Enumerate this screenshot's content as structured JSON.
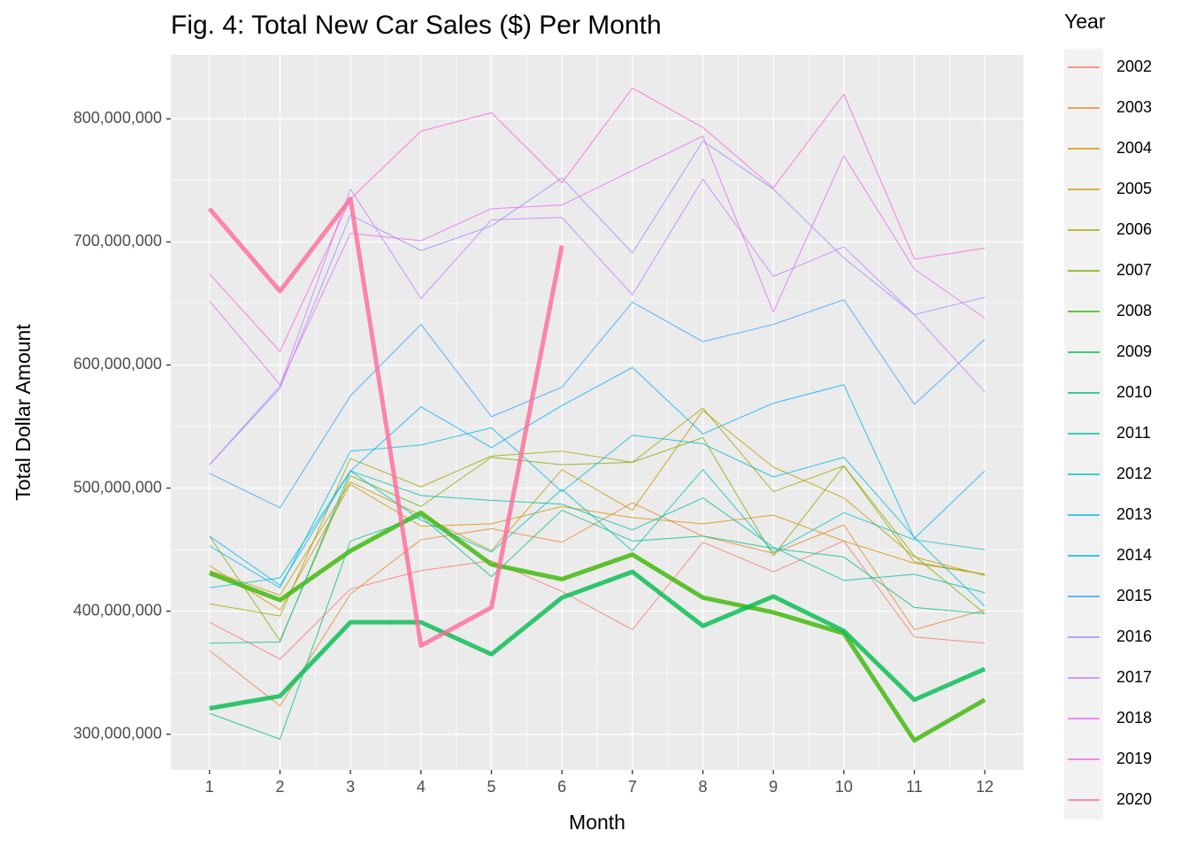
{
  "chart_data": {
    "type": "line",
    "title": "Fig. 4: Total New Car Sales ($) Per Month",
    "x_label": "Month",
    "y_label": "Total Dollar Amount",
    "legend_title": "Year",
    "x": [
      1,
      2,
      3,
      4,
      5,
      6,
      7,
      8,
      9,
      10,
      11,
      12
    ],
    "xlim": [
      0.45,
      12.55
    ],
    "xticks": [
      1,
      2,
      3,
      4,
      5,
      6,
      7,
      8,
      9,
      10,
      11,
      12
    ],
    "ylim": [
      271000000,
      852000000
    ],
    "yticks": [
      {
        "value": 300000000,
        "label": "300,000,000"
      },
      {
        "value": 400000000,
        "label": "400,000,000"
      },
      {
        "value": 500000000,
        "label": "500,000,000"
      },
      {
        "value": 600000000,
        "label": "600,000,000"
      },
      {
        "value": 700000000,
        "label": "700,000,000"
      },
      {
        "value": 800000000,
        "label": "800,000,000"
      }
    ],
    "grid": true,
    "legend": "right",
    "series": [
      {
        "name": "2002",
        "color": "#F8766D",
        "linewidth": 1,
        "values": [
          391000000,
          361000000,
          418000000,
          433000000,
          441000000,
          416000000,
          385000000,
          456000000,
          432000000,
          457000000,
          379000000,
          374000000
        ]
      },
      {
        "name": "2003",
        "color": "#EA8331",
        "linewidth": 1,
        "values": [
          368000000,
          323000000,
          414000000,
          458000000,
          467000000,
          456000000,
          488000000,
          461000000,
          447000000,
          470000000,
          385000000,
          401000000
        ]
      },
      {
        "name": "2004",
        "color": "#D89000",
        "linewidth": 1,
        "values": [
          437000000,
          401000000,
          503000000,
          469000000,
          471000000,
          485000000,
          476000000,
          471000000,
          478000000,
          457000000,
          439000000,
          430000000
        ]
      },
      {
        "name": "2005",
        "color": "#C09B00",
        "linewidth": 1,
        "values": [
          433000000,
          413000000,
          505000000,
          478000000,
          449000000,
          515000000,
          482000000,
          563000000,
          517000000,
          492000000,
          444000000,
          429000000
        ]
      },
      {
        "name": "2006",
        "color": "#A3A500",
        "linewidth": 1,
        "values": [
          406000000,
          396000000,
          524000000,
          501000000,
          526000000,
          530000000,
          521000000,
          565000000,
          497000000,
          518000000,
          440000000,
          430000000
        ]
      },
      {
        "name": "2007",
        "color": "#7CAE00",
        "linewidth": 1,
        "values": [
          461000000,
          376000000,
          510000000,
          485000000,
          525000000,
          519000000,
          521000000,
          541000000,
          445000000,
          518000000,
          445000000,
          398000000
        ]
      },
      {
        "name": "2008",
        "color": "#39B600",
        "linewidth": 5,
        "values": [
          431000000,
          409000000,
          449000000,
          480000000,
          438000000,
          426000000,
          446000000,
          411000000,
          399000000,
          382000000,
          295000000,
          328000000
        ]
      },
      {
        "name": "2009",
        "color": "#00BB4E",
        "linewidth": 5,
        "values": [
          321000000,
          331000000,
          391000000,
          391000000,
          365000000,
          411000000,
          432000000,
          388000000,
          412000000,
          384000000,
          328000000,
          353000000
        ]
      },
      {
        "name": "2010",
        "color": "#00BF7D",
        "linewidth": 1,
        "values": [
          317000000,
          296000000,
          457000000,
          477000000,
          428000000,
          482000000,
          457000000,
          461000000,
          451000000,
          444000000,
          403000000,
          398000000
        ]
      },
      {
        "name": "2011",
        "color": "#00C1A3",
        "linewidth": 1,
        "values": [
          374000000,
          375000000,
          514000000,
          494000000,
          490000000,
          487000000,
          466000000,
          492000000,
          452000000,
          425000000,
          430000000,
          415000000
        ]
      },
      {
        "name": "2012",
        "color": "#00BFC4",
        "linewidth": 1,
        "values": [
          419000000,
          427000000,
          514000000,
          474000000,
          448000000,
          499000000,
          449000000,
          515000000,
          448000000,
          480000000,
          458000000,
          450000000
        ]
      },
      {
        "name": "2013",
        "color": "#00BAE0",
        "linewidth": 1,
        "values": [
          453000000,
          419000000,
          530000000,
          535000000,
          549000000,
          497000000,
          543000000,
          536000000,
          509000000,
          525000000,
          460000000,
          404000000
        ]
      },
      {
        "name": "2014",
        "color": "#00B0F6",
        "linewidth": 1,
        "values": [
          461000000,
          421000000,
          514000000,
          566000000,
          533000000,
          567000000,
          598000000,
          544000000,
          569000000,
          584000000,
          459000000,
          514000000
        ]
      },
      {
        "name": "2015",
        "color": "#35A2FF",
        "linewidth": 1,
        "values": [
          512000000,
          484000000,
          575000000,
          633000000,
          558000000,
          582000000,
          651000000,
          619000000,
          633000000,
          653000000,
          568000000,
          621000000
        ]
      },
      {
        "name": "2016",
        "color": "#9590FF",
        "linewidth": 1,
        "values": [
          519000000,
          581000000,
          722000000,
          693000000,
          713000000,
          752000000,
          691000000,
          782000000,
          743000000,
          687000000,
          641000000,
          655000000
        ]
      },
      {
        "name": "2017",
        "color": "#C77CFF",
        "linewidth": 1,
        "values": [
          519000000,
          583000000,
          743000000,
          654000000,
          718000000,
          720000000,
          657000000,
          751000000,
          672000000,
          696000000,
          641000000,
          578000000
        ]
      },
      {
        "name": "2018",
        "color": "#E76BF3",
        "linewidth": 1,
        "values": [
          652000000,
          584000000,
          707000000,
          701000000,
          727000000,
          730000000,
          758000000,
          786000000,
          643000000,
          770000000,
          678000000,
          638000000
        ]
      },
      {
        "name": "2019",
        "color": "#FA62DB",
        "linewidth": 1,
        "values": [
          674000000,
          611000000,
          735000000,
          790000000,
          805000000,
          748000000,
          825000000,
          793000000,
          744000000,
          820000000,
          686000000,
          695000000
        ]
      },
      {
        "name": "2020",
        "color": "#FF6A98",
        "linewidth": 5,
        "values": [
          727000000,
          660000000,
          735000000,
          372000000,
          403000000,
          697000000,
          null,
          null,
          null,
          null,
          null,
          null
        ]
      }
    ]
  }
}
